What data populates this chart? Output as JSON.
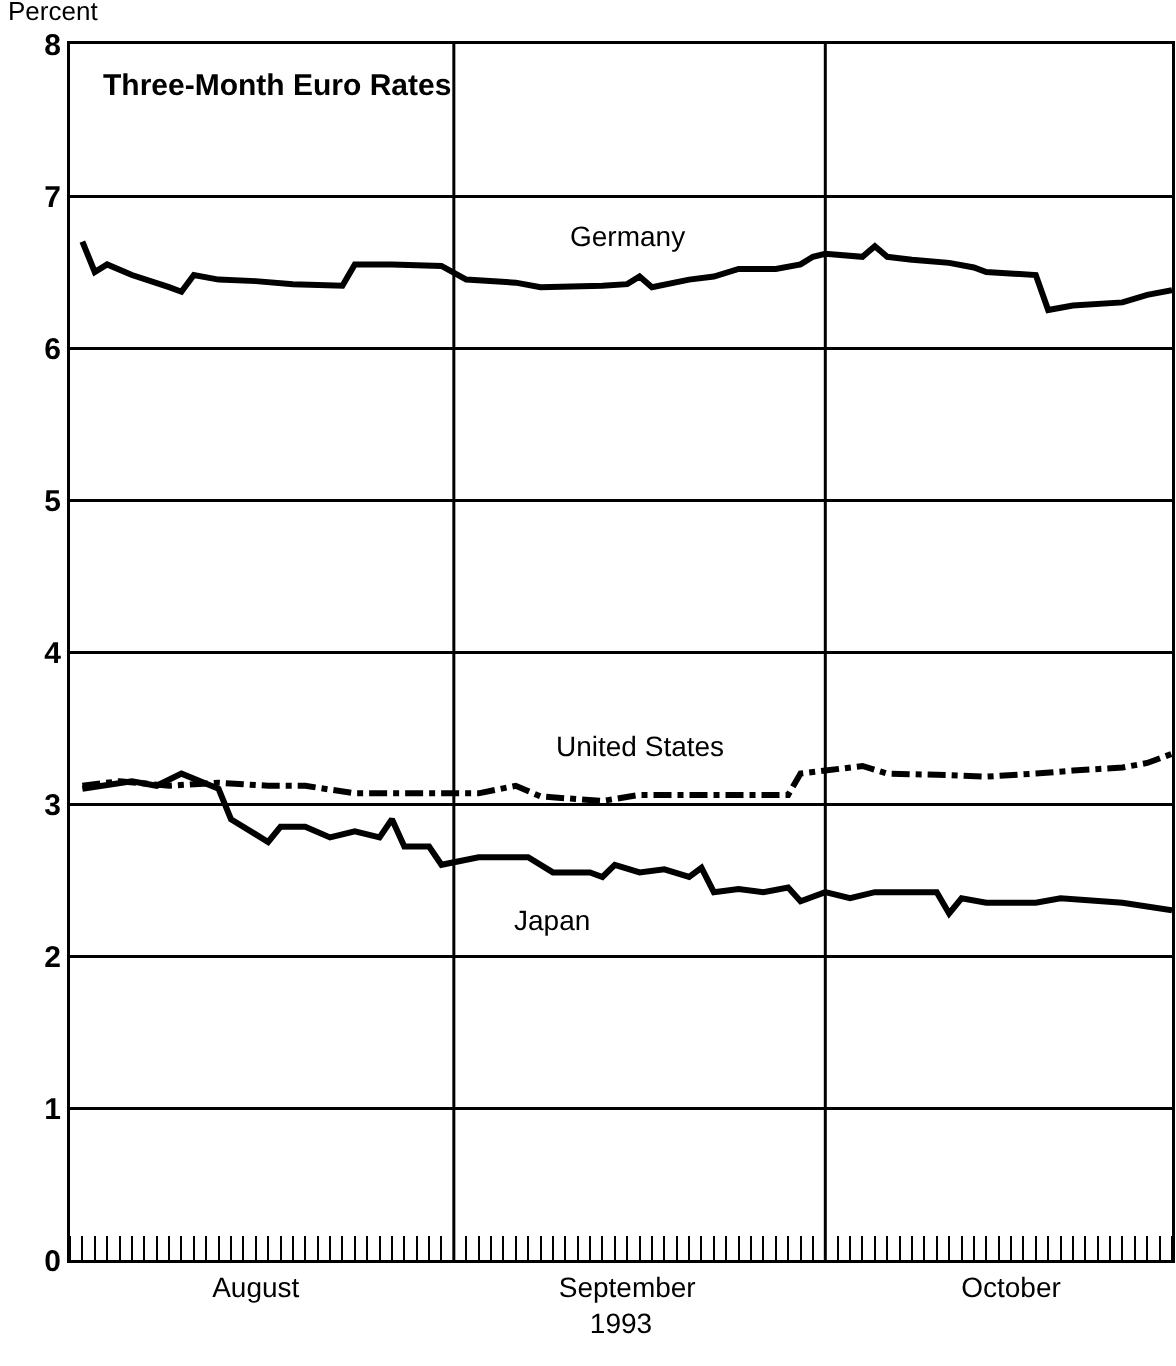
{
  "chart_data": {
    "type": "line",
    "title": "Three-Month Euro Rates",
    "ylabel": "Percent",
    "xlabel": "1993",
    "xlim": [
      "1993-08-01",
      "1993-10-29"
    ],
    "xticks": [
      {
        "value": "1993-08-16",
        "label": "August"
      },
      {
        "value": "1993-09-01",
        "label": null
      },
      {
        "value": "1993-09-15",
        "label": "September"
      },
      {
        "value": "1993-10-01",
        "label": null
      },
      {
        "value": "1993-10-16",
        "label": "October"
      }
    ],
    "ylim": [
      0,
      8
    ],
    "yticks": [
      0,
      1,
      2,
      3,
      4,
      5,
      6,
      7,
      8
    ],
    "grid": true,
    "legend": false,
    "marker": "none",
    "series": [
      {
        "name": "Germany",
        "color": "#000000",
        "line_style": "solid",
        "x": [
          "1993-08-02",
          "1993-08-03",
          "1993-08-04",
          "1993-08-06",
          "1993-08-09",
          "1993-08-10",
          "1993-08-11",
          "1993-08-13",
          "1993-08-16",
          "1993-08-19",
          "1993-08-23",
          "1993-08-24",
          "1993-08-27",
          "1993-08-31",
          "1993-09-02",
          "1993-09-06",
          "1993-09-08",
          "1993-09-13",
          "1993-09-15",
          "1993-09-16",
          "1993-09-17",
          "1993-09-20",
          "1993-09-22",
          "1993-09-24",
          "1993-09-27",
          "1993-09-29",
          "1993-09-30",
          "1993-10-01",
          "1993-10-04",
          "1993-10-05",
          "1993-10-06",
          "1993-10-08",
          "1993-10-11",
          "1993-10-13",
          "1993-10-14",
          "1993-10-18",
          "1993-10-19",
          "1993-10-21",
          "1993-10-25",
          "1993-10-27",
          "1993-10-29"
        ],
        "values": [
          6.7,
          6.5,
          6.55,
          6.48,
          6.4,
          6.37,
          6.48,
          6.45,
          6.44,
          6.42,
          6.41,
          6.55,
          6.55,
          6.54,
          6.45,
          6.43,
          6.4,
          6.41,
          6.42,
          6.47,
          6.4,
          6.45,
          6.47,
          6.52,
          6.52,
          6.55,
          6.6,
          6.62,
          6.6,
          6.67,
          6.6,
          6.58,
          6.56,
          6.53,
          6.5,
          6.48,
          6.25,
          6.28,
          6.3,
          6.35,
          6.38
        ]
      },
      {
        "name": "United States",
        "color": "#000000",
        "line_style": "dashdot",
        "x": [
          "1993-08-02",
          "1993-08-05",
          "1993-08-09",
          "1993-08-13",
          "1993-08-17",
          "1993-08-20",
          "1993-08-24",
          "1993-08-31",
          "1993-09-03",
          "1993-09-06",
          "1993-09-08",
          "1993-09-13",
          "1993-09-16",
          "1993-09-20",
          "1993-09-24",
          "1993-09-28",
          "1993-09-29",
          "1993-10-01",
          "1993-10-04",
          "1993-10-06",
          "1993-10-11",
          "1993-10-14",
          "1993-10-18",
          "1993-10-21",
          "1993-10-25",
          "1993-10-27",
          "1993-10-29"
        ],
        "values": [
          3.12,
          3.15,
          3.12,
          3.14,
          3.12,
          3.12,
          3.07,
          3.07,
          3.07,
          3.12,
          3.05,
          3.02,
          3.06,
          3.06,
          3.06,
          3.06,
          3.2,
          3.22,
          3.25,
          3.2,
          3.19,
          3.18,
          3.2,
          3.22,
          3.24,
          3.27,
          3.33
        ]
      },
      {
        "name": "Japan",
        "color": "#000000",
        "line_style": "solid",
        "x": [
          "1993-08-02",
          "1993-08-06",
          "1993-08-08",
          "1993-08-10",
          "1993-08-13",
          "1993-08-14",
          "1993-08-16",
          "1993-08-17",
          "1993-08-18",
          "1993-08-20",
          "1993-08-22",
          "1993-08-24",
          "1993-08-26",
          "1993-08-27",
          "1993-08-28",
          "1993-08-30",
          "1993-08-31",
          "1993-09-03",
          "1993-09-07",
          "1993-09-09",
          "1993-09-12",
          "1993-09-13",
          "1993-09-14",
          "1993-09-16",
          "1993-09-18",
          "1993-09-20",
          "1993-09-21",
          "1993-09-22",
          "1993-09-24",
          "1993-09-26",
          "1993-09-28",
          "1993-09-29",
          "1993-10-01",
          "1993-10-03",
          "1993-10-05",
          "1993-10-10",
          "1993-10-11",
          "1993-10-12",
          "1993-10-14",
          "1993-10-18",
          "1993-10-20",
          "1993-10-25",
          "1993-10-29"
        ],
        "values": [
          3.1,
          3.15,
          3.12,
          3.2,
          3.1,
          2.9,
          2.8,
          2.75,
          2.85,
          2.85,
          2.78,
          2.82,
          2.78,
          2.9,
          2.72,
          2.72,
          2.6,
          2.65,
          2.65,
          2.55,
          2.55,
          2.52,
          2.6,
          2.55,
          2.57,
          2.52,
          2.58,
          2.42,
          2.44,
          2.42,
          2.45,
          2.36,
          2.42,
          2.38,
          2.42,
          2.42,
          2.28,
          2.38,
          2.35,
          2.35,
          2.38,
          2.35,
          2.3
        ]
      }
    ]
  }
}
